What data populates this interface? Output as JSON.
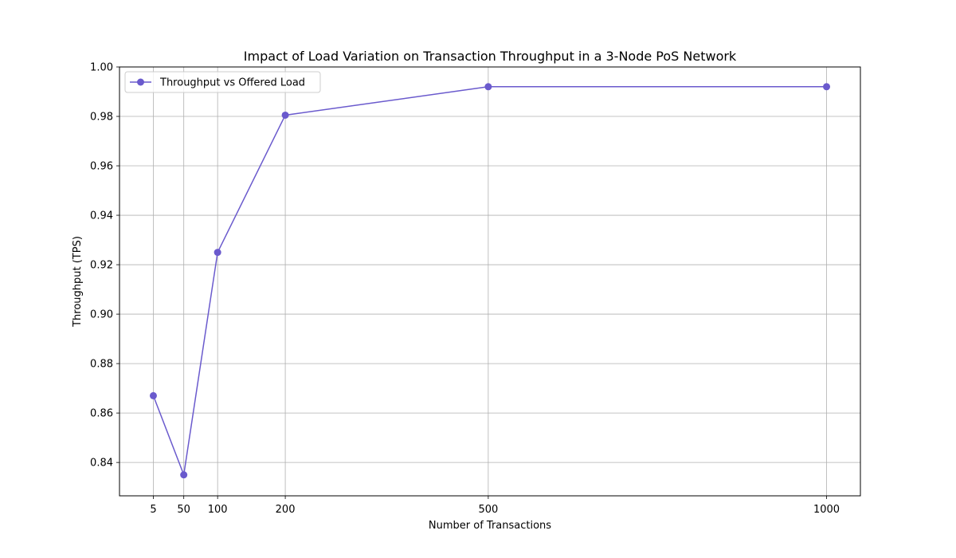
{
  "chart_data": {
    "type": "line",
    "title": "Impact of Load Variation on Transaction Throughput in a 3-Node PoS Network",
    "xlabel": "Number of Transactions",
    "ylabel": "Throughput (TPS)",
    "x": [
      5,
      50,
      100,
      200,
      500,
      1000
    ],
    "x_tick_labels": [
      "5",
      "50",
      "100",
      "200",
      "500",
      "1000"
    ],
    "xlim": [
      -45,
      1050
    ],
    "ylim": [
      0.8265,
      1.0
    ],
    "y_ticks": [
      0.84,
      0.86,
      0.88,
      0.9,
      0.92,
      0.94,
      0.96,
      0.98,
      1.0
    ],
    "y_tick_labels": [
      "0.84",
      "0.86",
      "0.88",
      "0.90",
      "0.92",
      "0.94",
      "0.96",
      "0.98",
      "1.00"
    ],
    "grid": true,
    "legend_position": "top-left",
    "series": [
      {
        "name": "Throughput vs Offered Load",
        "color": "#6a5acd",
        "marker": "circle",
        "values": [
          0.867,
          0.835,
          0.925,
          0.9805,
          0.992,
          0.992
        ]
      }
    ]
  }
}
